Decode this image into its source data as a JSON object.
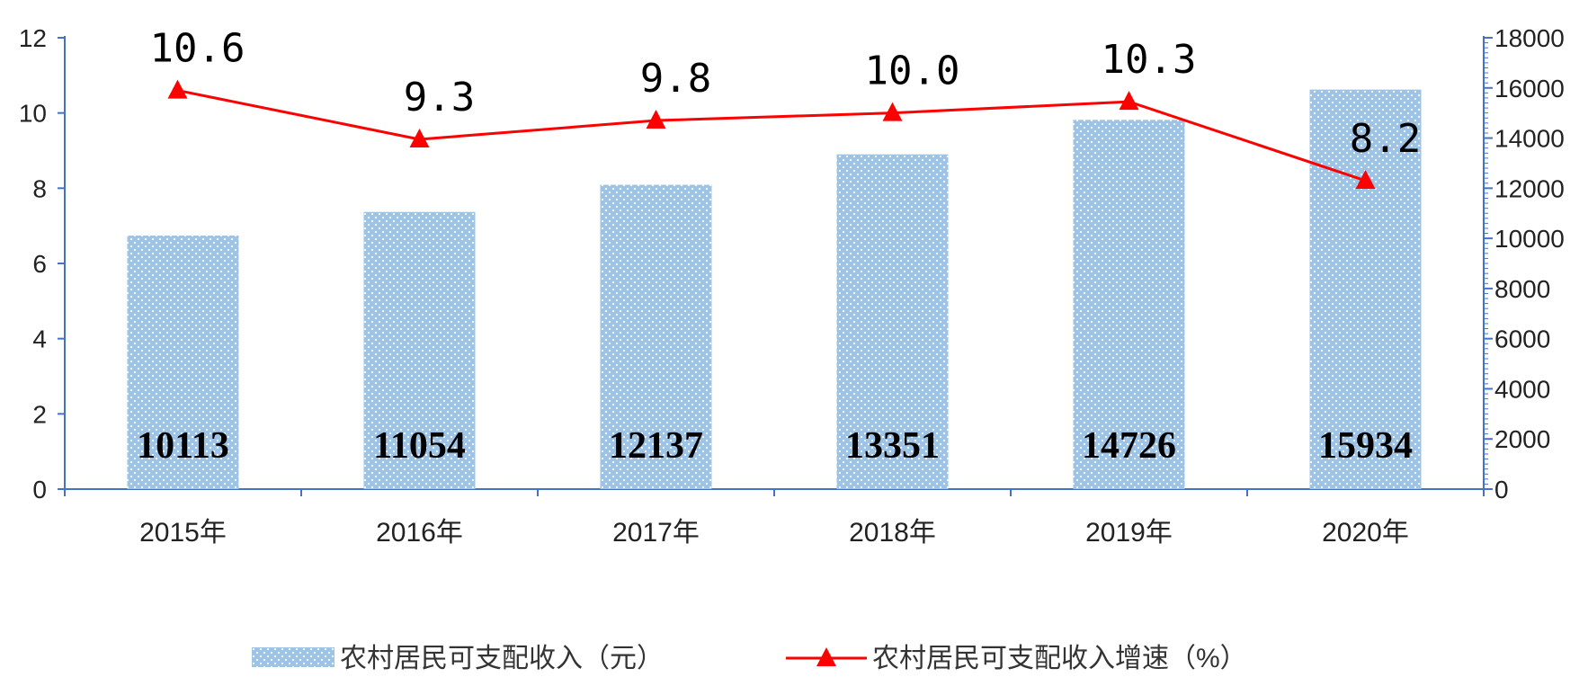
{
  "chart_data": {
    "type": "bar",
    "categories": [
      "2015年",
      "2016年",
      "2017年",
      "2018年",
      "2019年",
      "2020年"
    ],
    "series": [
      {
        "name": "农村居民可支配收入（元）",
        "type": "bar",
        "axis": "right",
        "values": [
          10113,
          11054,
          12137,
          13351,
          14726,
          15934
        ],
        "color": "#9dc3e6"
      },
      {
        "name": "农村居民可支配收入增速（%）",
        "type": "line",
        "axis": "left",
        "values": [
          10.6,
          9.3,
          9.8,
          10.0,
          10.3,
          8.2
        ],
        "color": "#ff0000"
      }
    ],
    "bar_labels": [
      "10113",
      "11054",
      "12137",
      "13351",
      "14726",
      "15934"
    ],
    "line_labels": [
      "10.6",
      "9.3",
      "9.8",
      "10.0",
      "10.3",
      "8.2"
    ],
    "left_axis": {
      "ylim": [
        0,
        12
      ],
      "ticks": [
        0,
        2,
        4,
        6,
        8,
        10,
        12
      ],
      "tick_labels": [
        "0",
        "2",
        "4",
        "6",
        "8",
        "10",
        "12"
      ]
    },
    "right_axis": {
      "ylim": [
        0,
        18000
      ],
      "ticks": [
        0,
        2000,
        4000,
        6000,
        8000,
        10000,
        12000,
        14000,
        16000,
        18000
      ],
      "tick_labels": [
        "0",
        "2000",
        "4000",
        "6000",
        "8000",
        "10000",
        "12000",
        "14000",
        "16000",
        "18000"
      ]
    },
    "legend": {
      "position": "bottom",
      "items": [
        "农村居民可支配收入（元）",
        "农村居民可支配收入增速（%）"
      ]
    },
    "grid": false,
    "title": "",
    "xlabel": "",
    "ylabel": ""
  }
}
